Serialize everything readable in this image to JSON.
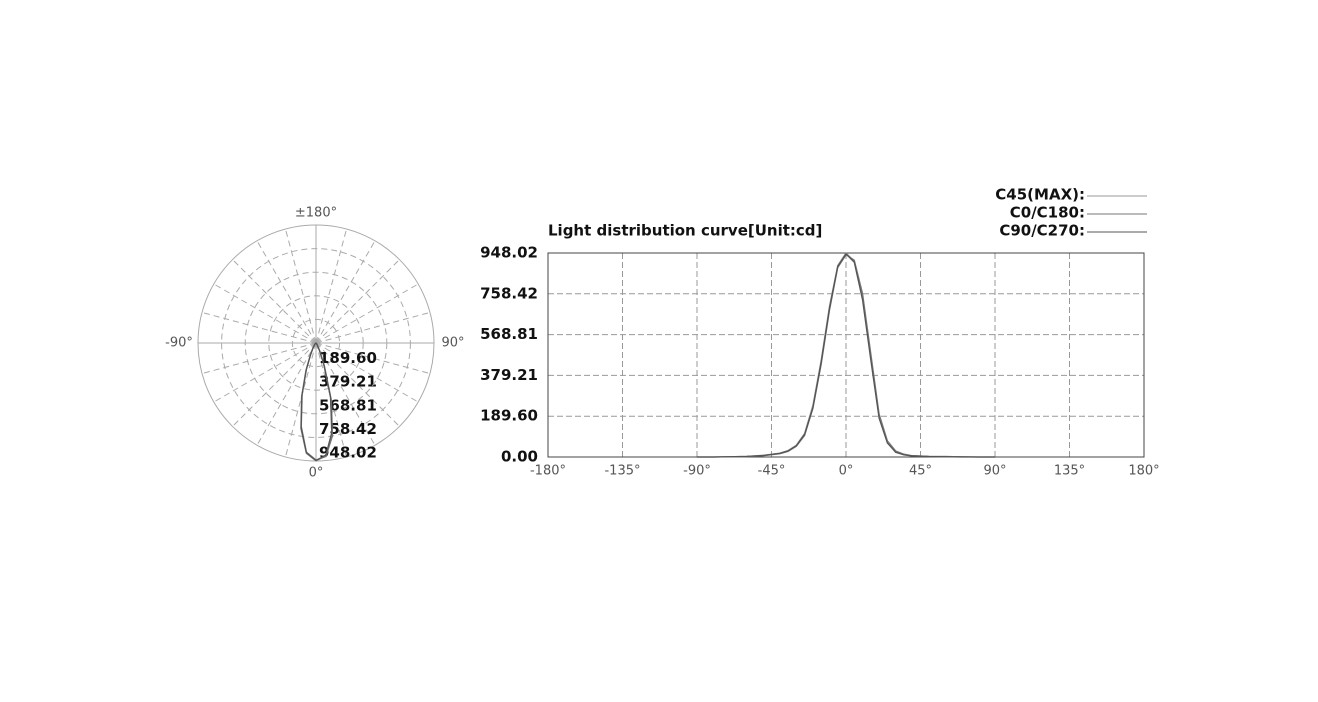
{
  "chart_data": [
    {
      "type": "polar",
      "x": [
        -90,
        -80,
        -70,
        -60,
        -50,
        -40,
        -35,
        -30,
        -25,
        -20,
        -15,
        -10,
        -5,
        0,
        5,
        10,
        15,
        20,
        25,
        30,
        35,
        40,
        50,
        60,
        70,
        80,
        90
      ],
      "rlim": [
        0,
        948.02
      ],
      "rticks": [
        {
          "value": 189.6,
          "label": "189.60"
        },
        379.21,
        568.81,
        758.42,
        948.02
      ],
      "thetaticks": [
        {
          "value": 180,
          "label": "±180°"
        },
        {
          "value": -90,
          "label": "-90°"
        },
        {
          "value": 90,
          "label": "90°"
        },
        {
          "value": 0,
          "label": "0°"
        }
      ],
      "grid_angle_step": 15,
      "series": [
        {
          "color": "#999999",
          "values": [
            0,
            0,
            1,
            3,
            8,
            18,
            30,
            55,
            110,
            240,
            450,
            700,
            890,
            948,
            910,
            740,
            460,
            190,
            70,
            25,
            12,
            6,
            3,
            2,
            1,
            0,
            0
          ]
        },
        {
          "color": "#777777",
          "values": [
            0,
            0,
            1,
            2,
            6,
            15,
            26,
            50,
            100,
            225,
            430,
            680,
            880,
            940,
            915,
            760,
            480,
            200,
            75,
            28,
            13,
            6,
            3,
            2,
            1,
            0,
            0
          ]
        },
        {
          "color": "#555555",
          "values": [
            0,
            0,
            1,
            3,
            7,
            17,
            28,
            52,
            105,
            230,
            440,
            690,
            885,
            944,
            905,
            730,
            450,
            180,
            65,
            22,
            10,
            5,
            2,
            1,
            0,
            0,
            0
          ]
        }
      ]
    },
    {
      "type": "line",
      "title": "Light distribution curve[Unit:cd]",
      "x": [
        -90,
        -80,
        -70,
        -60,
        -50,
        -40,
        -35,
        -30,
        -25,
        -20,
        -15,
        -10,
        -5,
        0,
        5,
        10,
        15,
        20,
        25,
        30,
        35,
        40,
        50,
        60,
        70,
        80,
        90
      ],
      "xlim": [
        -180,
        180
      ],
      "xticks": [
        {
          "value": -180,
          "label": "-180°"
        },
        {
          "value": -135,
          "label": "-135°"
        },
        {
          "value": -90,
          "label": "-90°"
        },
        {
          "value": -45,
          "label": "-45°"
        },
        {
          "value": 0,
          "label": "0°"
        },
        {
          "value": 45,
          "label": "45°"
        },
        {
          "value": 90,
          "label": "90°"
        },
        {
          "value": 135,
          "label": "135°"
        },
        {
          "value": 180,
          "label": "180°"
        }
      ],
      "ylim": [
        0,
        948.02
      ],
      "yticks": [
        {
          "value": 0,
          "label": "0.00"
        },
        {
          "value": 189.6,
          "label": "189.60"
        },
        379.21,
        568.81,
        758.42,
        948.02
      ],
      "grid": true,
      "series": [
        {
          "name": "C45(MAX):",
          "color": "#999999",
          "values": [
            0,
            0,
            1,
            3,
            8,
            18,
            30,
            55,
            110,
            240,
            450,
            700,
            890,
            948,
            910,
            740,
            460,
            190,
            70,
            25,
            12,
            6,
            3,
            2,
            1,
            0,
            0
          ]
        },
        {
          "name": "C0/C180:",
          "color": "#777777",
          "values": [
            0,
            0,
            1,
            2,
            6,
            15,
            26,
            50,
            100,
            225,
            430,
            680,
            880,
            940,
            915,
            760,
            480,
            200,
            75,
            28,
            13,
            6,
            3,
            2,
            1,
            0,
            0
          ]
        },
        {
          "name": "C90/C270:",
          "color": "#555555",
          "values": [
            0,
            0,
            1,
            3,
            7,
            17,
            28,
            52,
            105,
            230,
            440,
            690,
            885,
            944,
            905,
            730,
            450,
            180,
            65,
            22,
            10,
            5,
            2,
            1,
            0,
            0,
            0
          ]
        }
      ]
    }
  ]
}
